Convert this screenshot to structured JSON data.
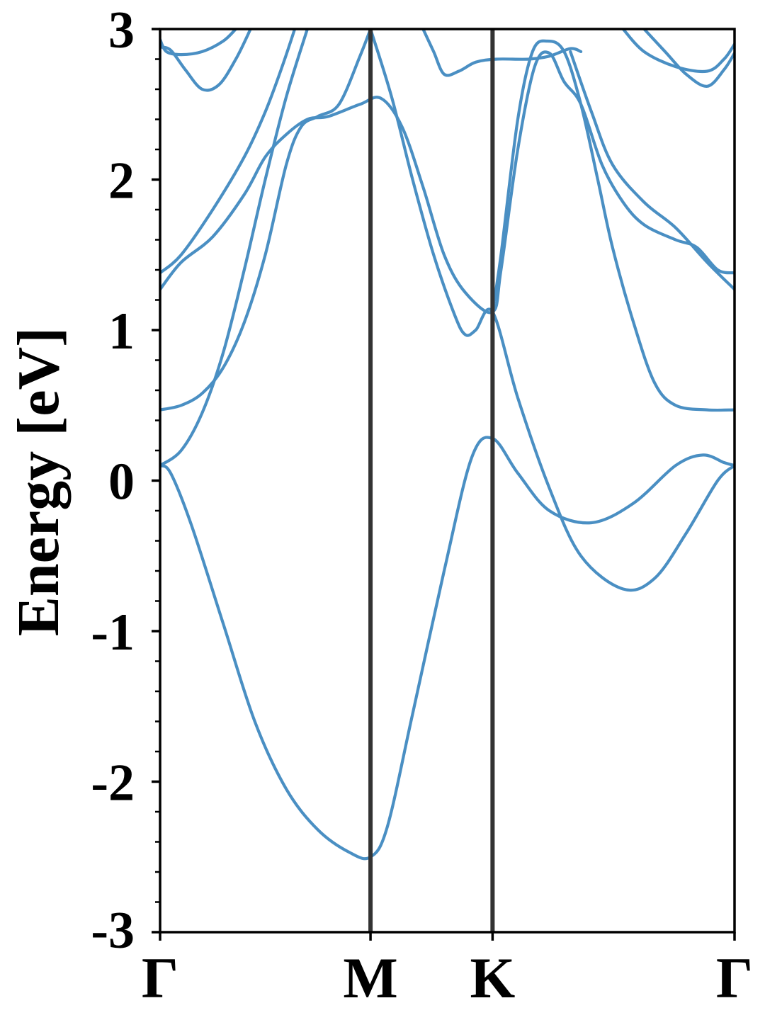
{
  "chart_data": {
    "type": "line",
    "title": "",
    "xlabel": "",
    "ylabel": "Energy [eV]",
    "ylim": [
      -3,
      3
    ],
    "xlim": [
      0,
      2.73
    ],
    "yticks": [
      "-3",
      "-2",
      "-1",
      "0",
      "1",
      "2",
      "3"
    ],
    "ytick_values": [
      -3,
      -2,
      -1,
      0,
      1,
      2,
      3
    ],
    "yminor_step": 0.2,
    "high_symmetry_points": [
      {
        "label": "Γ",
        "x": 0.0
      },
      {
        "label": "M",
        "x": 1.0
      },
      {
        "label": "K",
        "x": 1.58
      },
      {
        "label": "Γ",
        "x": 2.73
      }
    ],
    "band_color": "#4a8fc3",
    "divider_color": "#333333",
    "grid": false,
    "legend": "none",
    "bands": [
      {
        "points": [
          [
            0.0,
            0.1
          ],
          [
            0.05,
            0.05
          ],
          [
            0.15,
            -0.3
          ],
          [
            0.3,
            -0.95
          ],
          [
            0.45,
            -1.6
          ],
          [
            0.6,
            -2.05
          ],
          [
            0.75,
            -2.32
          ],
          [
            0.9,
            -2.47
          ],
          [
            1.0,
            -2.5
          ],
          [
            1.08,
            -2.3
          ],
          [
            1.2,
            -1.55
          ],
          [
            1.35,
            -0.6
          ],
          [
            1.48,
            0.15
          ],
          [
            1.58,
            0.28
          ],
          [
            1.7,
            0.05
          ],
          [
            1.85,
            -0.2
          ],
          [
            2.05,
            -0.28
          ],
          [
            2.25,
            -0.15
          ],
          [
            2.45,
            0.1
          ],
          [
            2.58,
            0.17
          ],
          [
            2.68,
            0.12
          ],
          [
            2.73,
            0.1
          ]
        ]
      },
      {
        "points": [
          [
            0.0,
            0.1
          ],
          [
            0.1,
            0.2
          ],
          [
            0.2,
            0.45
          ],
          [
            0.3,
            0.85
          ],
          [
            0.4,
            1.4
          ],
          [
            0.5,
            2.0
          ],
          [
            0.6,
            2.55
          ],
          [
            0.7,
            3.0
          ]
        ]
      },
      {
        "points": [
          [
            0.0,
            0.47
          ],
          [
            0.1,
            0.5
          ],
          [
            0.2,
            0.58
          ],
          [
            0.3,
            0.75
          ],
          [
            0.4,
            1.05
          ],
          [
            0.5,
            1.5
          ],
          [
            0.6,
            2.1
          ],
          [
            0.67,
            2.35
          ],
          [
            0.75,
            2.42
          ],
          [
            0.85,
            2.5
          ],
          [
            0.95,
            2.82
          ],
          [
            1.0,
            3.0
          ]
        ]
      },
      {
        "points": [
          [
            1.0,
            3.0
          ],
          [
            1.1,
            2.55
          ],
          [
            1.2,
            2.0
          ],
          [
            1.3,
            1.5
          ],
          [
            1.4,
            1.1
          ],
          [
            1.45,
            0.97
          ],
          [
            1.5,
            1.0
          ],
          [
            1.58,
            1.12
          ],
          [
            1.7,
            0.55
          ],
          [
            1.85,
            -0.05
          ],
          [
            2.0,
            -0.5
          ],
          [
            2.2,
            -0.72
          ],
          [
            2.35,
            -0.65
          ],
          [
            2.5,
            -0.35
          ],
          [
            2.65,
            0.0
          ],
          [
            2.73,
            0.1
          ]
        ]
      },
      {
        "points": [
          [
            0.0,
            1.27
          ],
          [
            0.1,
            1.45
          ],
          [
            0.25,
            1.62
          ],
          [
            0.4,
            1.9
          ],
          [
            0.5,
            2.15
          ],
          [
            0.6,
            2.3
          ],
          [
            0.7,
            2.4
          ],
          [
            0.8,
            2.42
          ],
          [
            0.95,
            2.5
          ],
          [
            1.05,
            2.54
          ],
          [
            1.15,
            2.35
          ],
          [
            1.25,
            1.95
          ],
          [
            1.35,
            1.5
          ],
          [
            1.45,
            1.25
          ],
          [
            1.58,
            1.12
          ],
          [
            1.62,
            1.4
          ],
          [
            1.7,
            2.2
          ],
          [
            1.78,
            2.75
          ],
          [
            1.85,
            2.84
          ],
          [
            1.92,
            2.65
          ],
          [
            2.0,
            2.5
          ],
          [
            2.1,
            2.1
          ],
          [
            2.2,
            1.85
          ],
          [
            2.3,
            1.7
          ],
          [
            2.45,
            1.6
          ],
          [
            2.55,
            1.55
          ],
          [
            2.65,
            1.4
          ],
          [
            2.73,
            1.38
          ]
        ]
      },
      {
        "points": [
          [
            0.0,
            1.38
          ],
          [
            0.1,
            1.5
          ],
          [
            0.25,
            1.8
          ],
          [
            0.4,
            2.15
          ],
          [
            0.5,
            2.45
          ],
          [
            0.58,
            2.75
          ],
          [
            0.64,
            3.0
          ]
        ]
      },
      {
        "points": [
          [
            1.58,
            1.12
          ],
          [
            1.62,
            1.5
          ],
          [
            1.7,
            2.4
          ],
          [
            1.77,
            2.85
          ],
          [
            1.84,
            2.92
          ],
          [
            1.92,
            2.85
          ],
          [
            2.0,
            2.5
          ],
          [
            2.08,
            2.0
          ],
          [
            2.15,
            1.55
          ],
          [
            2.25,
            1.05
          ],
          [
            2.35,
            0.65
          ],
          [
            2.45,
            0.5
          ],
          [
            2.6,
            0.47
          ],
          [
            2.73,
            0.47
          ]
        ]
      },
      {
        "points": [
          [
            1.95,
            2.85
          ],
          [
            2.05,
            2.45
          ],
          [
            2.15,
            2.1
          ],
          [
            2.3,
            1.85
          ],
          [
            2.45,
            1.68
          ],
          [
            2.6,
            1.45
          ],
          [
            2.73,
            1.27
          ]
        ]
      },
      {
        "points": [
          [
            0.0,
            2.88
          ],
          [
            0.05,
            2.86
          ],
          [
            0.12,
            2.73
          ],
          [
            0.2,
            2.6
          ],
          [
            0.28,
            2.63
          ],
          [
            0.36,
            2.8
          ],
          [
            0.43,
            3.0
          ]
        ]
      },
      {
        "points": [
          [
            0.0,
            2.93
          ],
          [
            0.03,
            2.85
          ],
          [
            0.1,
            2.83
          ],
          [
            0.2,
            2.85
          ],
          [
            0.3,
            2.92
          ],
          [
            0.36,
            3.0
          ]
        ]
      },
      {
        "points": [
          [
            1.25,
            3.0
          ],
          [
            1.3,
            2.85
          ],
          [
            1.35,
            2.7
          ],
          [
            1.42,
            2.72
          ],
          [
            1.5,
            2.78
          ],
          [
            1.6,
            2.8
          ],
          [
            1.75,
            2.8
          ],
          [
            1.85,
            2.82
          ],
          [
            1.95,
            2.87
          ],
          [
            2.0,
            2.85
          ]
        ]
      },
      {
        "points": [
          [
            2.2,
            3.0
          ],
          [
            2.3,
            2.85
          ],
          [
            2.45,
            2.75
          ],
          [
            2.6,
            2.72
          ],
          [
            2.68,
            2.8
          ],
          [
            2.73,
            2.9
          ]
        ]
      },
      {
        "points": [
          [
            2.3,
            3.0
          ],
          [
            2.4,
            2.85
          ],
          [
            2.5,
            2.7
          ],
          [
            2.6,
            2.62
          ],
          [
            2.68,
            2.73
          ],
          [
            2.73,
            2.84
          ]
        ]
      }
    ]
  }
}
